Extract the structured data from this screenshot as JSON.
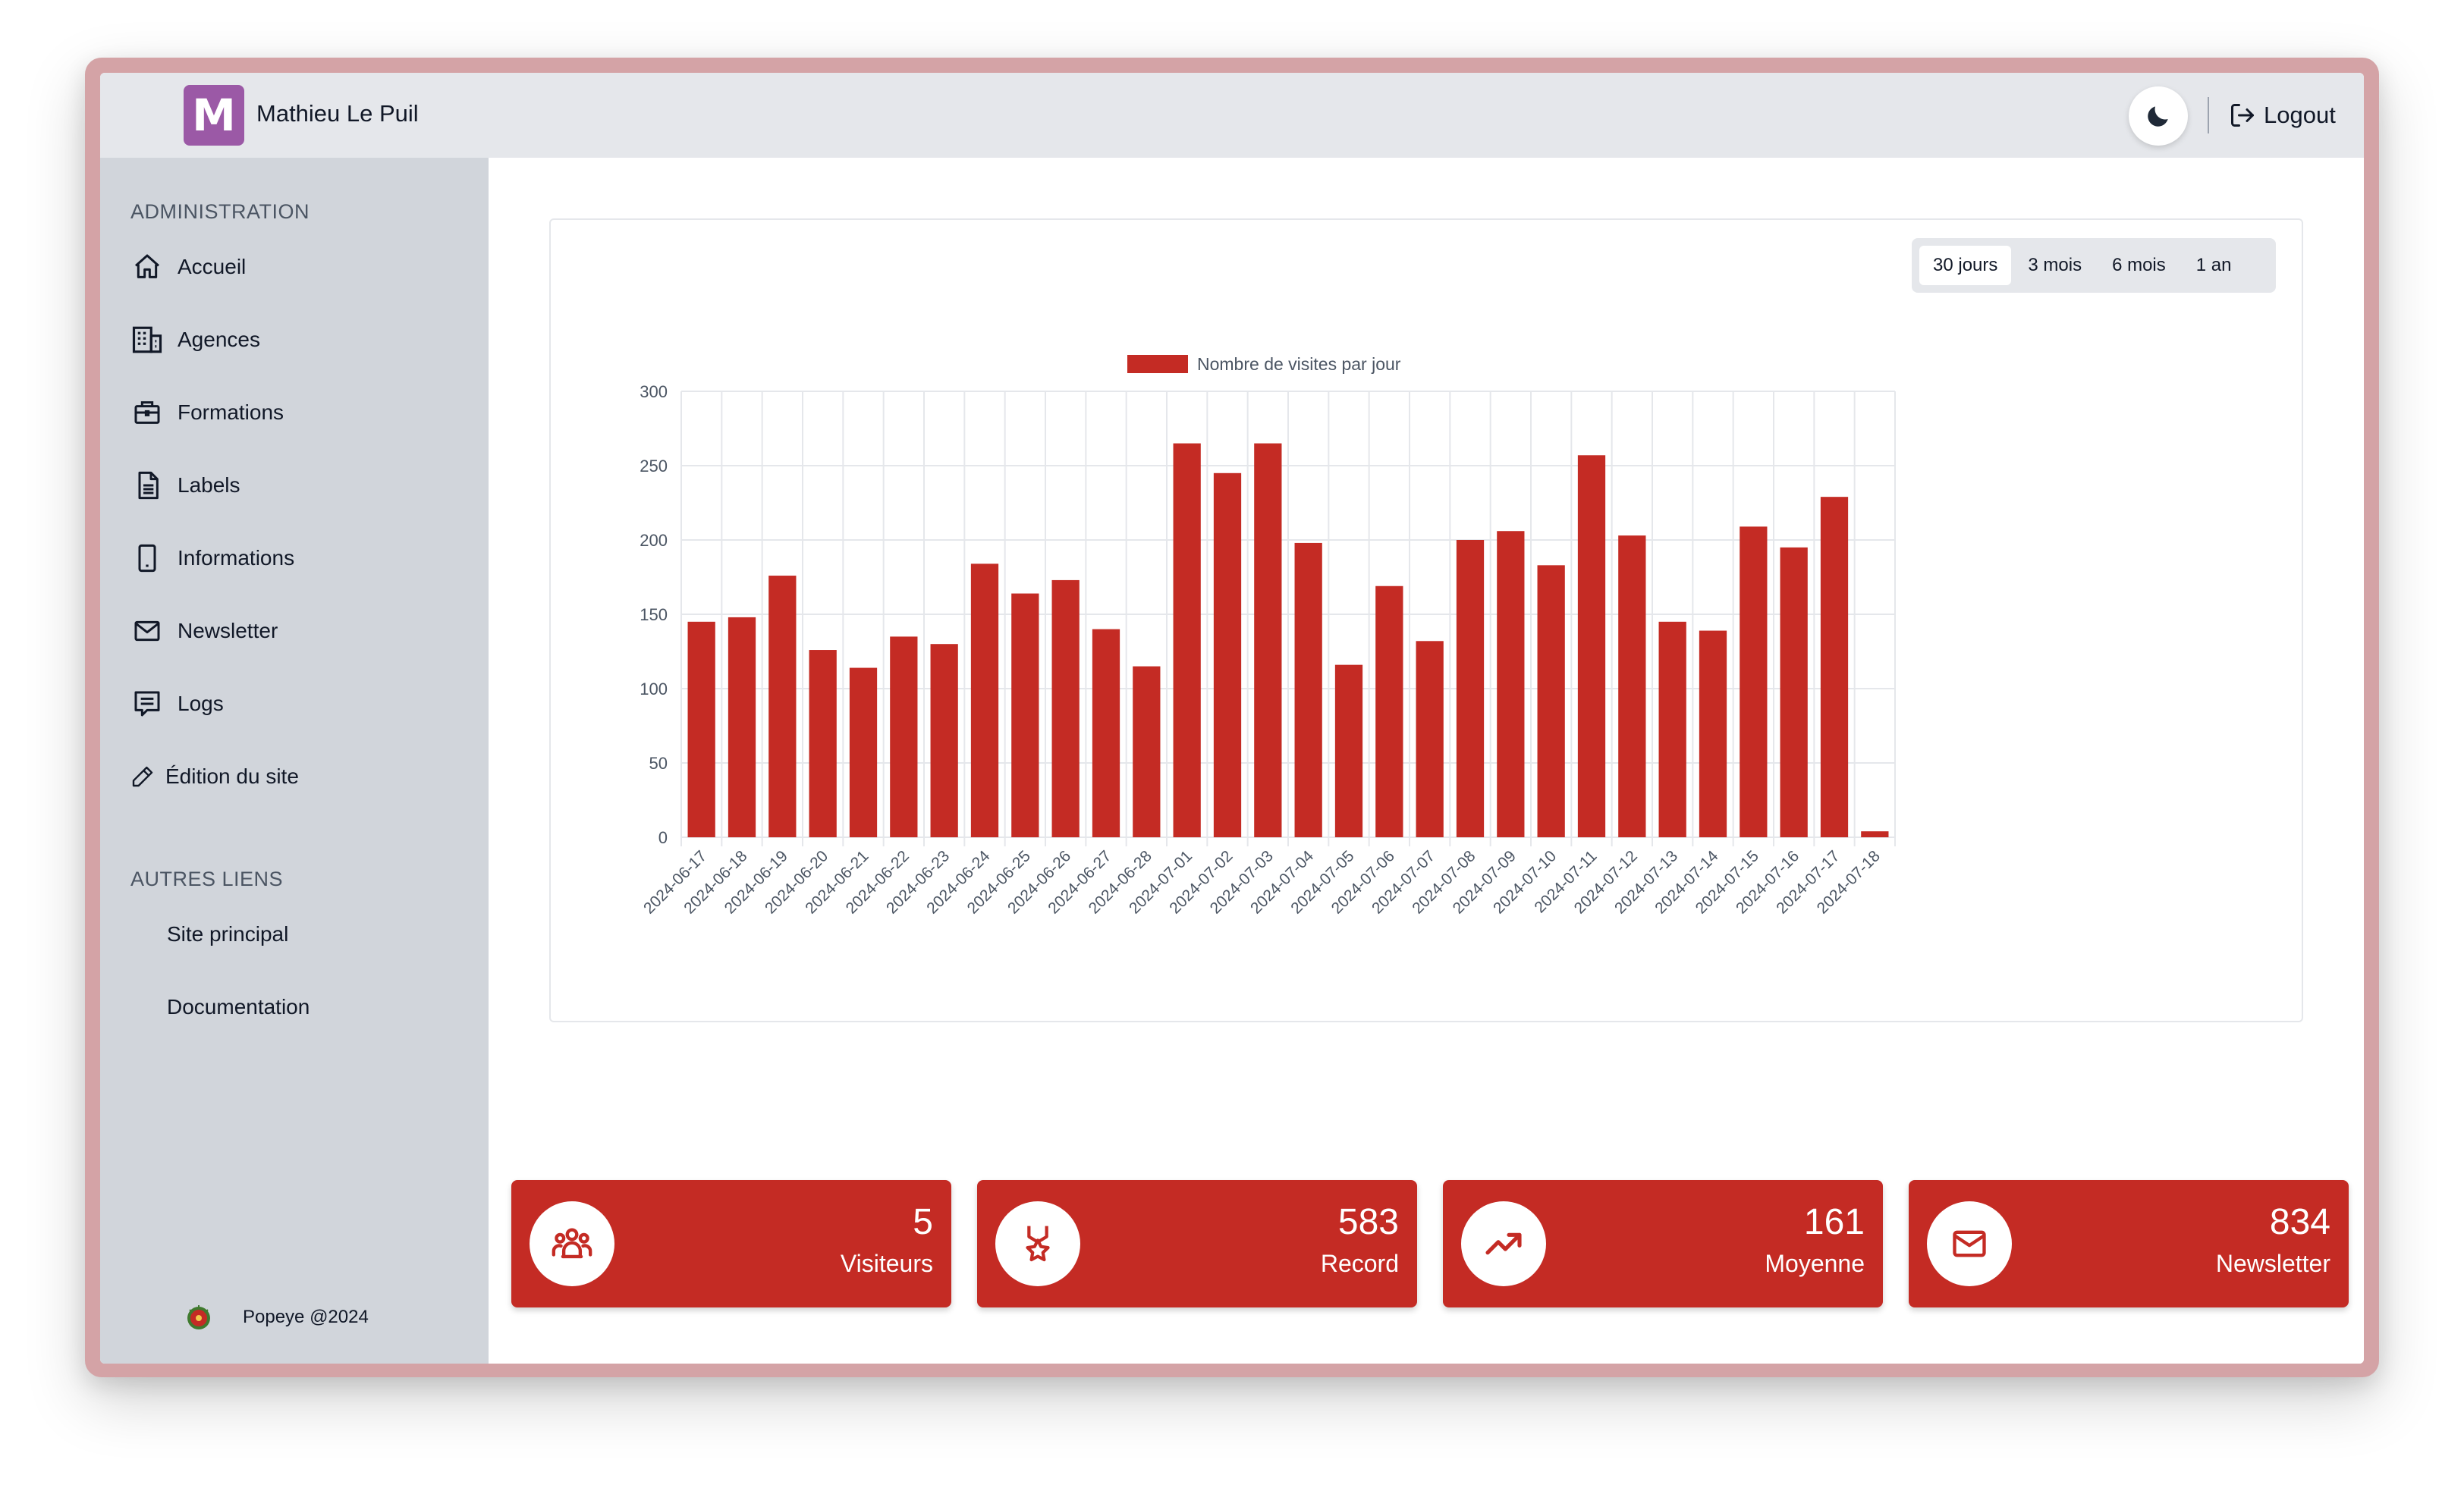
{
  "header": {
    "logo_letter": "M",
    "username": "Mathieu Le Puil",
    "theme_icon": "moon-icon",
    "logout_label": "Logout",
    "logout_icon": "logout-icon"
  },
  "sidebar": {
    "admin_title": "ADMINISTRATION",
    "items": [
      {
        "label": "Accueil",
        "icon": "home-icon"
      },
      {
        "label": "Agences",
        "icon": "building-icon"
      },
      {
        "label": "Formations",
        "icon": "briefcase-icon"
      },
      {
        "label": "Labels",
        "icon": "document-icon"
      },
      {
        "label": "Informations",
        "icon": "phone-icon"
      },
      {
        "label": "Newsletter",
        "icon": "mail-icon"
      },
      {
        "label": "Logs",
        "icon": "message-icon"
      },
      {
        "label": "Édition du site",
        "icon": "pencil-icon"
      }
    ],
    "other_title": "AUTRES LIENS",
    "other_links": [
      {
        "label": "Site principal"
      },
      {
        "label": "Documentation"
      }
    ],
    "footer": "Popeye @2024"
  },
  "range_buttons": [
    {
      "label": "30 jours",
      "active": true
    },
    {
      "label": "3 mois",
      "active": false
    },
    {
      "label": "6 mois",
      "active": false
    },
    {
      "label": "1 an",
      "active": false
    }
  ],
  "colors": {
    "accent": "#c42b24",
    "sidebar_bg": "#d1d5db",
    "topbar_bg": "#e5e7eb",
    "logo_bg": "#9b59a6"
  },
  "chart_data": {
    "type": "bar",
    "legend": "Nombre de visites par jour",
    "legend_position": "top",
    "grid": true,
    "ylim": [
      0,
      300
    ],
    "yticks": [
      0,
      50,
      100,
      150,
      200,
      250,
      300
    ],
    "categories": [
      "2024-06-17",
      "2024-06-18",
      "2024-06-19",
      "2024-06-20",
      "2024-06-21",
      "2024-06-22",
      "2024-06-23",
      "2024-06-24",
      "2024-06-25",
      "2024-06-26",
      "2024-06-27",
      "2024-06-28",
      "2024-07-01",
      "2024-07-02",
      "2024-07-03",
      "2024-07-04",
      "2024-07-05",
      "2024-07-06",
      "2024-07-07",
      "2024-07-08",
      "2024-07-09",
      "2024-07-10",
      "2024-07-11",
      "2024-07-12",
      "2024-07-13",
      "2024-07-14",
      "2024-07-15",
      "2024-07-16",
      "2024-07-17",
      "2024-07-18"
    ],
    "values": [
      145,
      148,
      176,
      126,
      114,
      135,
      130,
      184,
      164,
      173,
      140,
      115,
      265,
      245,
      265,
      198,
      116,
      169,
      132,
      200,
      206,
      183,
      257,
      203,
      145,
      139,
      209,
      195,
      229,
      4
    ]
  },
  "stats": [
    {
      "value": "5",
      "label": "Visiteurs",
      "icon": "users-icon"
    },
    {
      "value": "583",
      "label": "Record",
      "icon": "award-icon"
    },
    {
      "value": "161",
      "label": "Moyenne",
      "icon": "trending-up-icon"
    },
    {
      "value": "834",
      "label": "Newsletter",
      "icon": "mail-icon"
    }
  ]
}
